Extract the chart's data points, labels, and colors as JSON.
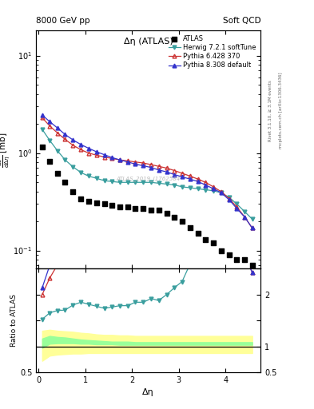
{
  "title_top_left": "8000 GeV pp",
  "title_top_right": "Soft QCD",
  "plot_title": "Δη (ATLAS)",
  "ylabel_main": "$\\frac{d\\sigma}{d\\Delta\\eta}$ [mb]",
  "ylabel_ratio": "Ratio to ATLAS",
  "xlabel": "Δη",
  "right_label_top": "Rivet 3.1.10, ≥ 3.1M events",
  "right_label_bottom": "mcplots.cern.ch [arXiv:1306.3436]",
  "watermark": "ATLAS_2019_I1762584",
  "atlas_x": [
    0.08,
    0.24,
    0.41,
    0.57,
    0.74,
    0.91,
    1.07,
    1.24,
    1.41,
    1.57,
    1.74,
    1.91,
    2.07,
    2.24,
    2.41,
    2.57,
    2.74,
    2.91,
    3.07,
    3.24,
    3.41,
    3.57,
    3.74,
    3.91,
    4.08,
    4.24,
    4.41,
    4.57
  ],
  "atlas_y": [
    1.15,
    0.82,
    0.62,
    0.5,
    0.4,
    0.34,
    0.32,
    0.31,
    0.3,
    0.29,
    0.28,
    0.28,
    0.27,
    0.27,
    0.26,
    0.26,
    0.24,
    0.22,
    0.2,
    0.17,
    0.15,
    0.13,
    0.12,
    0.1,
    0.09,
    0.08,
    0.08,
    0.07
  ],
  "herwig_x": [
    0.08,
    0.24,
    0.41,
    0.57,
    0.74,
    0.91,
    1.07,
    1.24,
    1.41,
    1.57,
    1.74,
    1.91,
    2.07,
    2.24,
    2.41,
    2.57,
    2.74,
    2.91,
    3.07,
    3.24,
    3.41,
    3.57,
    3.74,
    3.91,
    4.08,
    4.24,
    4.41,
    4.57
  ],
  "herwig_y": [
    1.75,
    1.35,
    1.05,
    0.85,
    0.72,
    0.63,
    0.58,
    0.55,
    0.52,
    0.51,
    0.5,
    0.5,
    0.5,
    0.5,
    0.5,
    0.49,
    0.48,
    0.47,
    0.45,
    0.44,
    0.43,
    0.42,
    0.41,
    0.39,
    0.35,
    0.3,
    0.25,
    0.21
  ],
  "pythia6_x": [
    0.08,
    0.24,
    0.41,
    0.57,
    0.74,
    0.91,
    1.07,
    1.24,
    1.41,
    1.57,
    1.74,
    1.91,
    2.07,
    2.24,
    2.41,
    2.57,
    2.74,
    2.91,
    3.07,
    3.24,
    3.41,
    3.57,
    3.74,
    3.91,
    4.08,
    4.24,
    4.41,
    4.57
  ],
  "pythia6_y": [
    2.3,
    1.9,
    1.6,
    1.38,
    1.2,
    1.08,
    1.0,
    0.95,
    0.91,
    0.88,
    0.85,
    0.83,
    0.81,
    0.79,
    0.76,
    0.73,
    0.7,
    0.66,
    0.62,
    0.58,
    0.54,
    0.5,
    0.45,
    0.4,
    0.34,
    0.28,
    0.22,
    0.17
  ],
  "pythia8_x": [
    0.08,
    0.24,
    0.41,
    0.57,
    0.74,
    0.91,
    1.07,
    1.24,
    1.41,
    1.57,
    1.74,
    1.91,
    2.07,
    2.24,
    2.41,
    2.57,
    2.74,
    2.91,
    3.07,
    3.24,
    3.41,
    3.57,
    3.74,
    3.91,
    4.08,
    4.24,
    4.41,
    4.57
  ],
  "pythia8_y": [
    2.45,
    2.1,
    1.8,
    1.55,
    1.36,
    1.22,
    1.12,
    1.03,
    0.96,
    0.9,
    0.85,
    0.81,
    0.77,
    0.74,
    0.71,
    0.67,
    0.64,
    0.6,
    0.57,
    0.54,
    0.51,
    0.47,
    0.43,
    0.39,
    0.33,
    0.27,
    0.22,
    0.17
  ],
  "herwig_color": "#3a9e9e",
  "pythia6_color": "#cc3333",
  "pythia8_color": "#3333cc",
  "atlas_color": "#000000",
  "green_band_lo": [
    0.97,
    1.05,
    1.06,
    1.06,
    1.06,
    1.05,
    1.05,
    1.04,
    1.04,
    1.04,
    1.03,
    1.03,
    1.03,
    1.03,
    1.03,
    1.03,
    1.03,
    1.03,
    1.03,
    1.03,
    1.03,
    1.03,
    1.03,
    1.03,
    1.03,
    1.03,
    1.03,
    1.03
  ],
  "green_band_hi": [
    1.15,
    1.2,
    1.18,
    1.17,
    1.15,
    1.13,
    1.12,
    1.11,
    1.1,
    1.09,
    1.09,
    1.09,
    1.08,
    1.08,
    1.08,
    1.08,
    1.08,
    1.08,
    1.08,
    1.08,
    1.08,
    1.08,
    1.08,
    1.08,
    1.08,
    1.08,
    1.08,
    1.08
  ],
  "yellow_band_lo": [
    0.72,
    0.82,
    0.84,
    0.85,
    0.86,
    0.86,
    0.87,
    0.87,
    0.87,
    0.87,
    0.87,
    0.87,
    0.87,
    0.87,
    0.87,
    0.87,
    0.87,
    0.87,
    0.87,
    0.87,
    0.87,
    0.87,
    0.87,
    0.87,
    0.87,
    0.87,
    0.87,
    0.87
  ],
  "yellow_band_hi": [
    1.3,
    1.32,
    1.3,
    1.29,
    1.28,
    1.26,
    1.25,
    1.23,
    1.22,
    1.22,
    1.21,
    1.21,
    1.2,
    1.2,
    1.2,
    1.2,
    1.2,
    1.2,
    1.2,
    1.2,
    1.2,
    1.2,
    1.2,
    1.2,
    1.2,
    1.2,
    1.2,
    1.2
  ]
}
